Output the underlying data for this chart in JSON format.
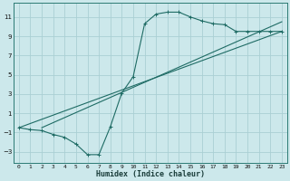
{
  "xlabel": "Humidex (Indice chaleur)",
  "background_color": "#cce8eb",
  "grid_color": "#aacfd4",
  "line_color": "#1e6b64",
  "xlim": [
    -0.5,
    23.5
  ],
  "ylim": [
    -4.2,
    12.5
  ],
  "xticks": [
    0,
    1,
    2,
    3,
    4,
    5,
    6,
    7,
    8,
    9,
    10,
    11,
    12,
    13,
    14,
    15,
    16,
    17,
    18,
    19,
    20,
    21,
    22,
    23
  ],
  "yticks": [
    -3,
    -1,
    1,
    3,
    5,
    7,
    9,
    11
  ],
  "line1_x": [
    0,
    1,
    2,
    3,
    4,
    5,
    6,
    7,
    8,
    9,
    10,
    11,
    12,
    13,
    14,
    15,
    16,
    17,
    18,
    19,
    20,
    21,
    22,
    23
  ],
  "line1_y": [
    -0.5,
    -0.7,
    -0.8,
    -1.2,
    -1.5,
    -2.2,
    -3.3,
    -3.3,
    -0.4,
    3.1,
    4.8,
    10.3,
    11.3,
    11.5,
    11.5,
    11.0,
    10.6,
    10.3,
    10.2,
    9.5,
    9.5,
    9.5,
    9.5,
    9.5
  ],
  "line2_x": [
    0,
    23
  ],
  "line2_y": [
    -0.5,
    9.5
  ],
  "line3_x": [
    2,
    23
  ],
  "line3_y": [
    -0.5,
    10.5
  ],
  "marker_size": 2.5,
  "linewidth": 0.8
}
